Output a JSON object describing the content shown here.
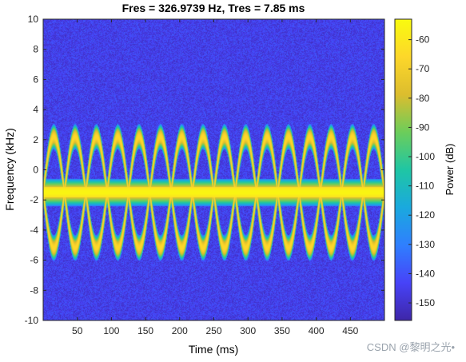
{
  "chart_data": {
    "type": "heatmap",
    "title": "Fres = 326.9739 Hz, Tres = 7.85 ms",
    "xlabel": "Time (ms)",
    "ylabel": "Frequency (kHz)",
    "colorbar_label": "Power (dB)",
    "xlim": [
      0,
      500
    ],
    "ylim": [
      -10,
      10
    ],
    "clim": [
      -156,
      -53
    ],
    "x_ticks": [
      50,
      100,
      150,
      200,
      250,
      300,
      350,
      400,
      450
    ],
    "y_ticks": [
      10,
      8,
      6,
      4,
      2,
      0,
      -2,
      -4,
      -6,
      -8,
      -10
    ],
    "colorbar_ticks": [
      -60,
      -70,
      -80,
      -90,
      -100,
      -110,
      -120,
      -130,
      -140,
      -150
    ],
    "noise_floor_db": -145,
    "signals": [
      {
        "kind": "constant-tone",
        "frequency_khz": -1.5,
        "power_db": -55
      },
      {
        "kind": "sinusoidal-fm",
        "center_khz": -1.5,
        "deviation_khz": 3.7,
        "period_ms": 62.5,
        "power_db": -65
      },
      {
        "kind": "sinusoidal-fm",
        "center_khz": -1.5,
        "deviation_khz": -3.7,
        "period_ms": 62.5,
        "power_db": -65
      }
    ],
    "colormap": "parula",
    "colormap_stops": [
      "#3e26a8",
      "#4743f8",
      "#2f7ffe",
      "#1aa9de",
      "#1fc6a4",
      "#6ccd5a",
      "#dcbd2e",
      "#fdd72a",
      "#f9fb0e"
    ]
  },
  "watermark": "CSDN @黎明之光•"
}
